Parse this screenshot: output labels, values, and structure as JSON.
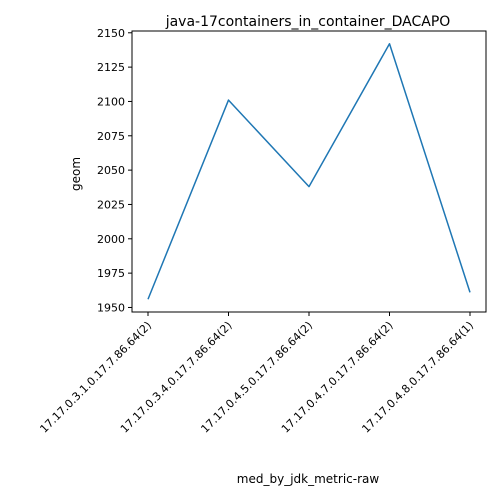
{
  "chart_data": {
    "type": "line",
    "title": "java-17containers_in_container_DACAPO",
    "xlabel": "med_by_jdk_metric-raw",
    "ylabel": "geom",
    "categories": [
      "17.17.0.3.1.0.17.7.86.64(2)",
      "17.17.0.3.4.0.17.7.86.64(2)",
      "17.17.0.4.5.0.17.7.86.64(2)",
      "17.17.0.4.7.0.17.7.86.64(2)",
      "17.17.0.4.8.0.17.7.86.64(1)"
    ],
    "series": [
      {
        "values": [
          1956,
          2101,
          2038,
          2142,
          1961
        ],
        "color": "#1f77b4"
      }
    ],
    "ylim": [
      1946.7,
      2151.3
    ],
    "yticks": [
      1950,
      1975,
      2000,
      2025,
      2050,
      2075,
      2100,
      2125,
      2150
    ],
    "grid": false,
    "legend": "none"
  }
}
